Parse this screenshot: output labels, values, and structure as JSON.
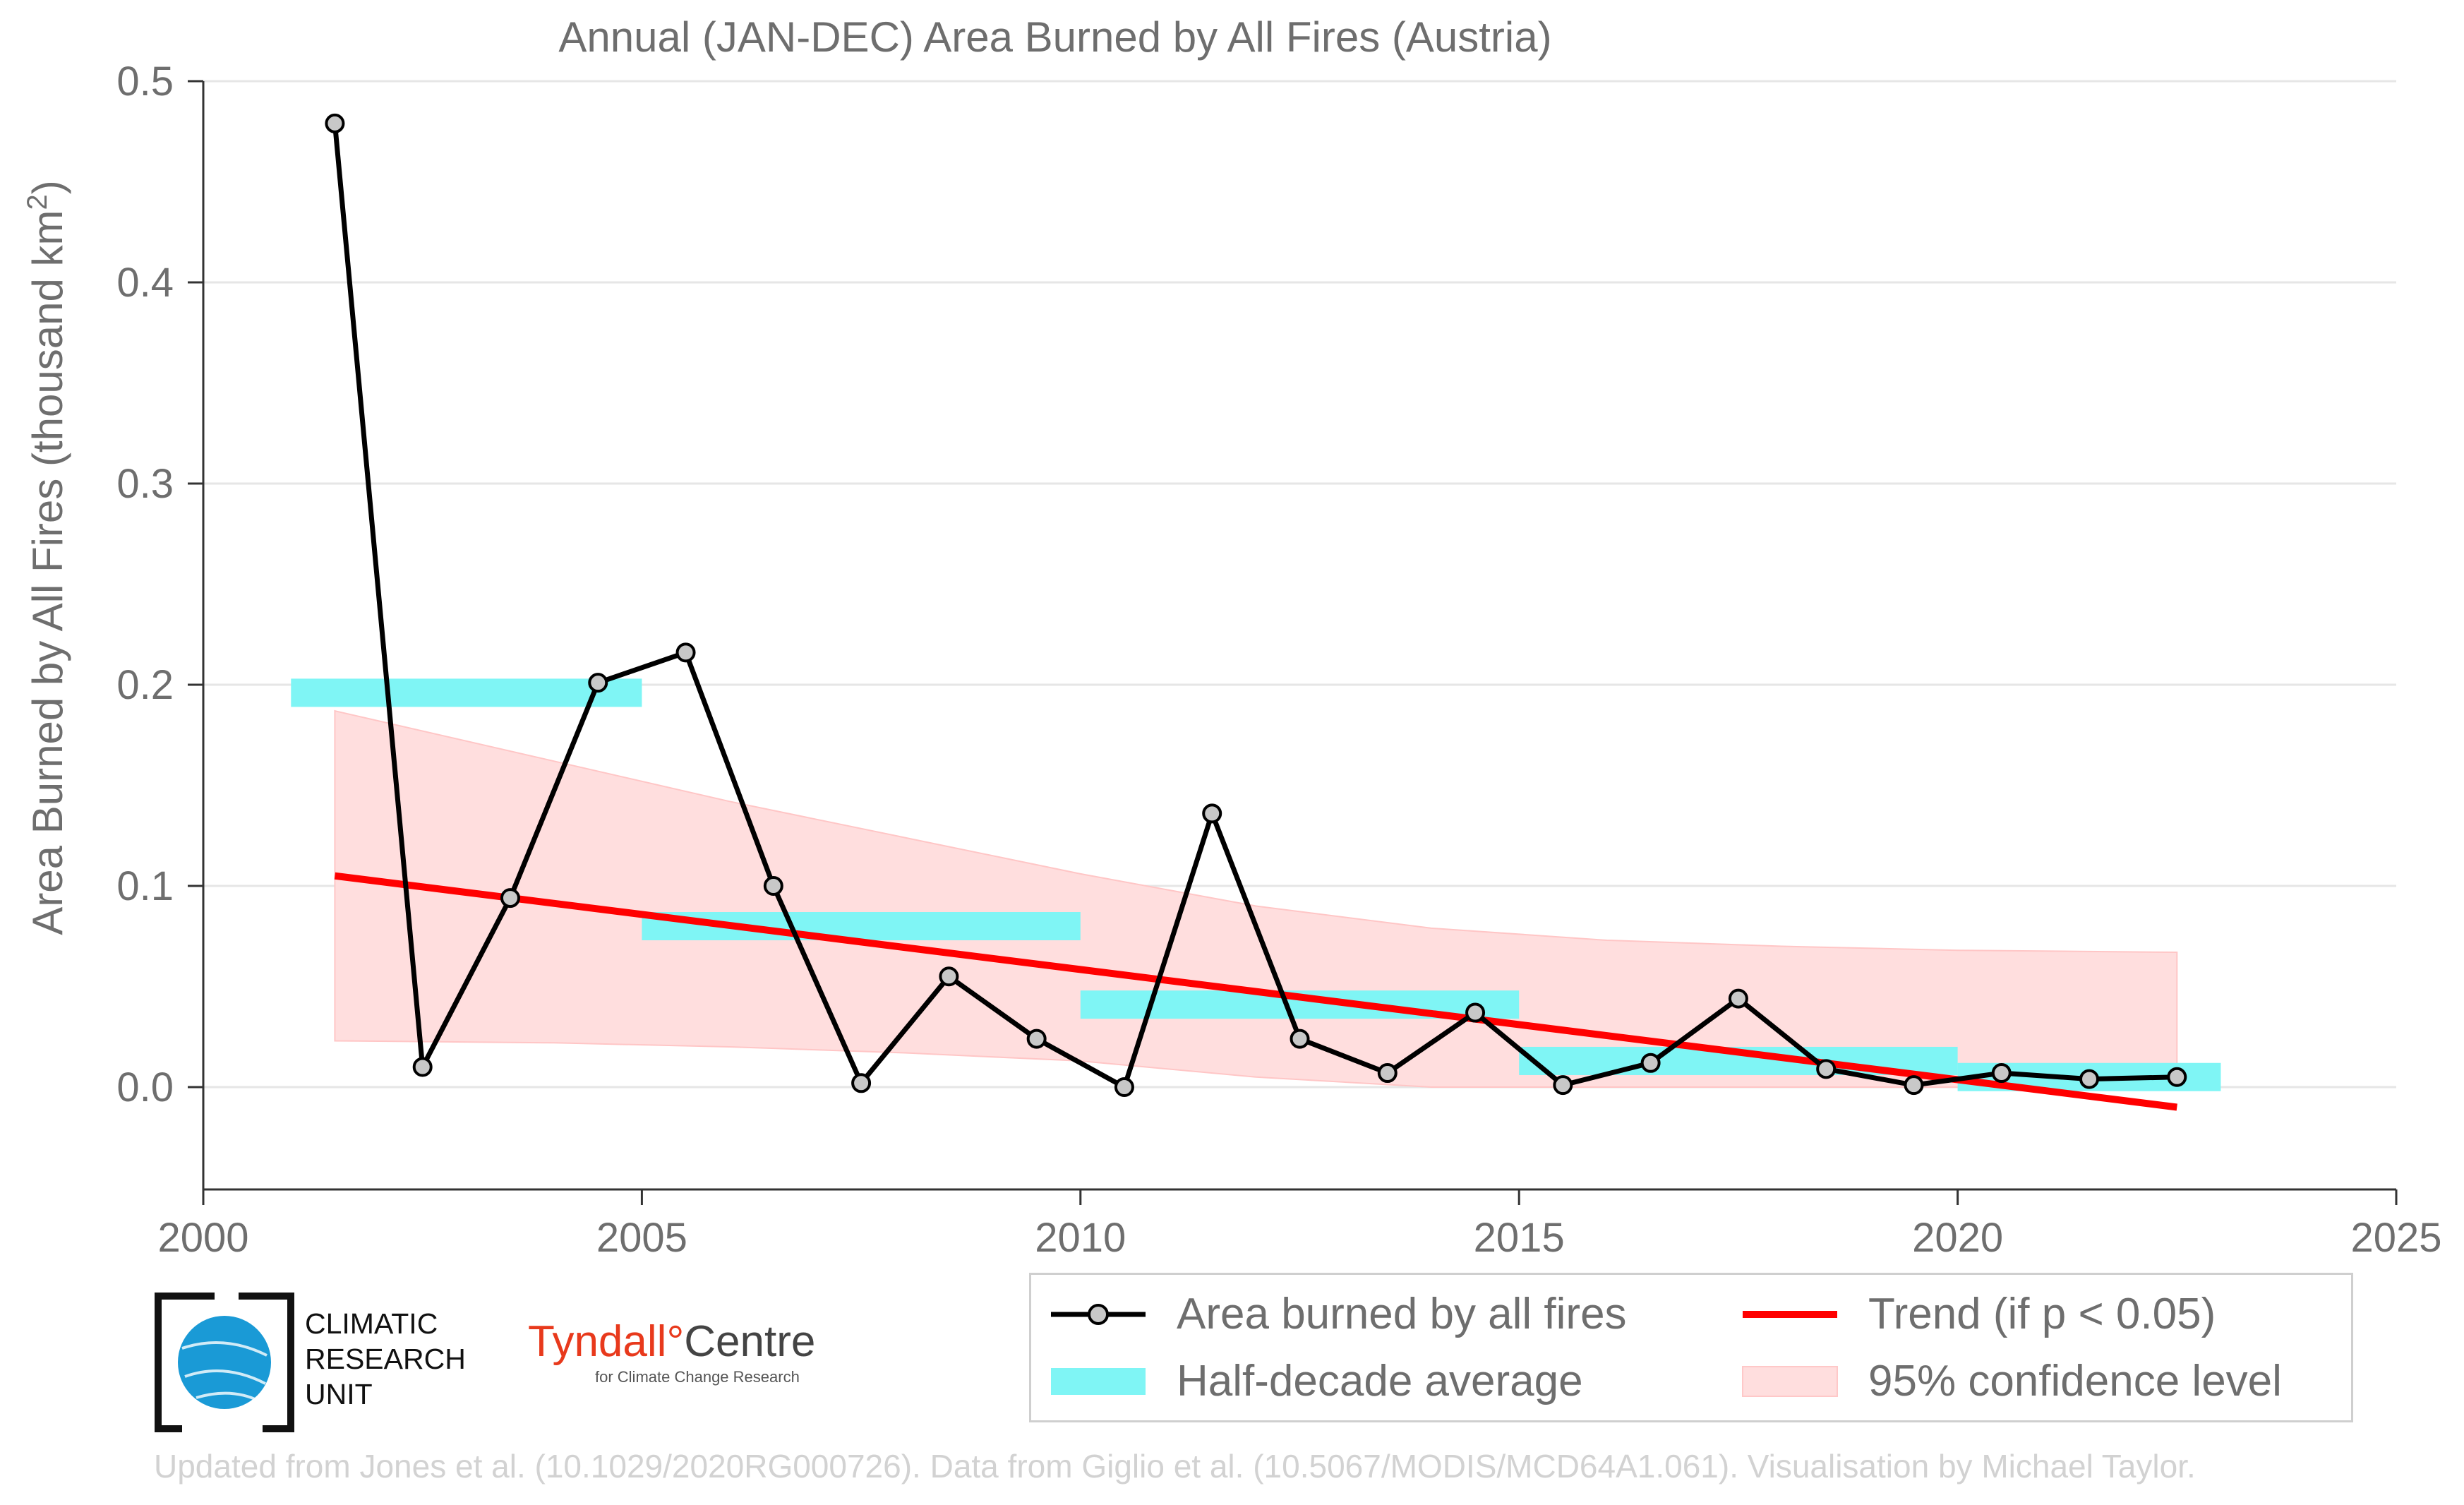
{
  "chart_data": {
    "type": "line",
    "title": "Annual (JAN-DEC) Area Burned by All Fires (Austria)",
    "ylabel_main": "Area Burned by All Fires (thousand km",
    "ylabel_sup": "2",
    "ylabel_end": ")",
    "xlim": [
      2000,
      2025
    ],
    "ylim": [
      -0.05,
      0.5
    ],
    "x_ticks": [
      2000,
      2005,
      2010,
      2015,
      2020,
      2025
    ],
    "y_ticks": [
      0.0,
      0.1,
      0.2,
      0.3,
      0.4,
      0.5
    ],
    "y_tick_labels": [
      "0.0",
      "0.1",
      "0.2",
      "0.3",
      "0.4",
      "0.5"
    ],
    "grid": true,
    "series": [
      {
        "name": "Area burned by all fires",
        "color": "#000000",
        "marker_fill": "#c8c8c8",
        "x": [
          2001.5,
          2002.5,
          2003.5,
          2004.5,
          2005.5,
          2006.5,
          2007.5,
          2008.5,
          2009.5,
          2010.5,
          2011.5,
          2012.5,
          2013.5,
          2014.5,
          2015.5,
          2016.5,
          2017.5,
          2018.5,
          2019.5,
          2020.5,
          2021.5,
          2022.5
        ],
        "values": [
          0.479,
          0.01,
          0.094,
          0.201,
          0.216,
          0.1,
          0.002,
          0.055,
          0.024,
          0.0,
          0.136,
          0.024,
          0.007,
          0.037,
          0.001,
          0.012,
          0.044,
          0.009,
          0.001,
          0.007,
          0.004,
          0.005
        ]
      }
    ],
    "half_decade_average": {
      "name": "Half-decade average",
      "color": "#7ff5f5",
      "segments": [
        {
          "start": 2001,
          "end": 2005,
          "value": 0.196
        },
        {
          "start": 2005,
          "end": 2010,
          "value": 0.08
        },
        {
          "start": 2010,
          "end": 2015,
          "value": 0.041
        },
        {
          "start": 2015,
          "end": 2020,
          "value": 0.013
        },
        {
          "start": 2020,
          "end": 2023,
          "value": 0.005
        }
      ]
    },
    "trend": {
      "name": "Trend (if p < 0.05)",
      "color": "#ff0000",
      "x": [
        2001.5,
        2022.5
      ],
      "values": [
        0.105,
        -0.01
      ]
    },
    "confidence_band": {
      "name": "95% confidence level",
      "color": "#ffdede",
      "x": [
        2001.5,
        2004,
        2006,
        2008,
        2010,
        2012,
        2014,
        2016,
        2018,
        2020,
        2022.5
      ],
      "upper": [
        0.187,
        0.162,
        0.142,
        0.124,
        0.106,
        0.09,
        0.079,
        0.073,
        0.07,
        0.068,
        0.067
      ],
      "lower": [
        0.023,
        0.022,
        0.02,
        0.017,
        0.013,
        0.005,
        0.0,
        0.0,
        0.0,
        0.0,
        0.0
      ]
    },
    "legend": {
      "placement": "bottom-right",
      "entries": [
        "Area burned by all fires",
        "Trend (if p < 0.05)",
        "Half-decade average",
        "95% confidence level"
      ]
    }
  },
  "logos": {
    "cru_line1": "CLIMATIC",
    "cru_line2": "RESEARCH",
    "cru_line3": "UNIT",
    "tyndall_red": "Tyndall",
    "tyndall_degree": "°",
    "tyndall_dark": "Centre",
    "tyndall_sub": "for Climate Change Research"
  },
  "footer": "Updated from Jones et al. (10.1029/2020RG000726). Data from Giglio et al. (10.5067/MODIS/MCD64A1.061). Visualisation by Michael Taylor."
}
